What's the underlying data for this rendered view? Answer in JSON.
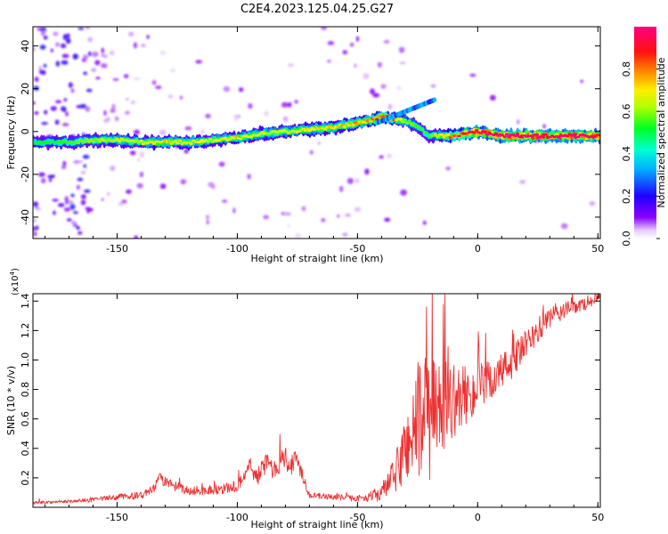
{
  "title": "C2E4.2023.125.04.25.G27",
  "colors": {
    "snr_line": "#ee3030",
    "axis": "#000000",
    "background": "#ffffff"
  },
  "chart_data": [
    {
      "type": "heatmap",
      "xlabel": "Height of straight line (km)",
      "ylabel": "Frequency (Hz)",
      "xlim": [
        -185,
        51
      ],
      "ylim": [
        -50,
        49
      ],
      "x_ticks": [
        -150,
        -100,
        -50,
        0,
        50
      ],
      "y_ticks": [
        -40,
        -20,
        0,
        20,
        40
      ],
      "x_tick_labels": [
        "-150",
        "-100",
        "-50",
        "0",
        "50"
      ],
      "y_tick_labels": [
        "-40",
        "-20",
        "0",
        "20",
        "40"
      ],
      "colorbar": {
        "label": "Normalized spectral amplitude",
        "range": [
          0,
          1
        ],
        "ticks": [
          0,
          0.2,
          0.4,
          0.6,
          0.8
        ],
        "tick_labels": [
          "0.0",
          "0.2",
          "0.4",
          "0.6",
          "0.8"
        ],
        "colormap": "rainbow (purple-blue-cyan-green-yellow-red-magenta)"
      },
      "ridge": {
        "description": "dominant frequency track vs height",
        "x": [
          -185,
          -170,
          -160,
          -150,
          -140,
          -130,
          -120,
          -110,
          -100,
          -90,
          -80,
          -70,
          -60,
          -50,
          -45,
          -40,
          -35,
          -30,
          -25,
          -20,
          -10,
          0,
          10,
          20,
          30,
          40,
          50
        ],
        "y": [
          -5,
          -5,
          -4,
          -4,
          -5,
          -5,
          -5,
          -4,
          -3,
          -1,
          0,
          1,
          2,
          4,
          5,
          7,
          6,
          5,
          2,
          -2,
          -2,
          0,
          -2,
          -2,
          -2,
          -2,
          -2
        ],
        "amplitude": [
          0.3,
          0.35,
          0.4,
          0.45,
          0.45,
          0.5,
          0.45,
          0.45,
          0.5,
          0.45,
          0.45,
          0.5,
          0.5,
          0.55,
          0.55,
          0.7,
          0.6,
          0.4,
          0.35,
          0.35,
          0.6,
          0.85,
          0.8,
          0.85,
          0.85,
          0.85,
          0.85
        ]
      },
      "grid": false
    },
    {
      "type": "line",
      "xlabel": "Height of straight line (km)",
      "ylabel": "SNR (10 * v/v)",
      "y_scale_label": "(x10",
      "y_scale_exponent": "4",
      "xlim": [
        -185,
        51
      ],
      "ylim": [
        0,
        1.45
      ],
      "x_ticks": [
        -150,
        -100,
        -50,
        0,
        50
      ],
      "y_ticks": [
        0.2,
        0.4,
        0.6,
        0.8,
        1.0,
        1.2,
        1.4
      ],
      "x_tick_labels": [
        "-150",
        "-100",
        "-50",
        "0",
        "50"
      ],
      "y_tick_labels": [
        "0.2",
        "0.4",
        "0.6",
        "0.8",
        "1.0",
        "1.2",
        "1.4"
      ],
      "series": [
        {
          "color": "#ee3030",
          "x": [
            -185,
            -170,
            -160,
            -150,
            -140,
            -135,
            -132,
            -128,
            -120,
            -110,
            -100,
            -95,
            -92,
            -88,
            -85,
            -80,
            -78,
            -75,
            -70,
            -60,
            -50,
            -45,
            -40,
            -35,
            -30,
            -28,
            -25,
            -22,
            -20,
            -18,
            -15,
            -10,
            -5,
            0,
            5,
            10,
            15,
            20,
            25,
            30,
            35,
            40,
            45,
            50,
            51
          ],
          "y": [
            0.03,
            0.04,
            0.05,
            0.07,
            0.08,
            0.12,
            0.2,
            0.15,
            0.11,
            0.12,
            0.14,
            0.28,
            0.2,
            0.3,
            0.26,
            0.35,
            0.28,
            0.33,
            0.08,
            0.07,
            0.06,
            0.07,
            0.1,
            0.2,
            0.4,
            0.5,
            0.55,
            0.65,
            0.6,
            0.65,
            0.68,
            0.72,
            0.76,
            0.8,
            0.85,
            0.92,
            1.0,
            1.1,
            1.2,
            1.28,
            1.33,
            1.36,
            1.38,
            1.42,
            1.42
          ],
          "noise": [
            0.01,
            0.01,
            0.015,
            0.02,
            0.025,
            0.03,
            0.04,
            0.04,
            0.03,
            0.035,
            0.04,
            0.06,
            0.06,
            0.07,
            0.07,
            0.08,
            0.08,
            0.08,
            0.02,
            0.02,
            0.02,
            0.03,
            0.06,
            0.12,
            0.25,
            0.35,
            0.4,
            0.45,
            0.45,
            0.35,
            0.3,
            0.25,
            0.2,
            0.17,
            0.15,
            0.13,
            0.12,
            0.1,
            0.09,
            0.07,
            0.06,
            0.05,
            0.04,
            0.03,
            0.03
          ]
        }
      ],
      "grid": false
    }
  ]
}
